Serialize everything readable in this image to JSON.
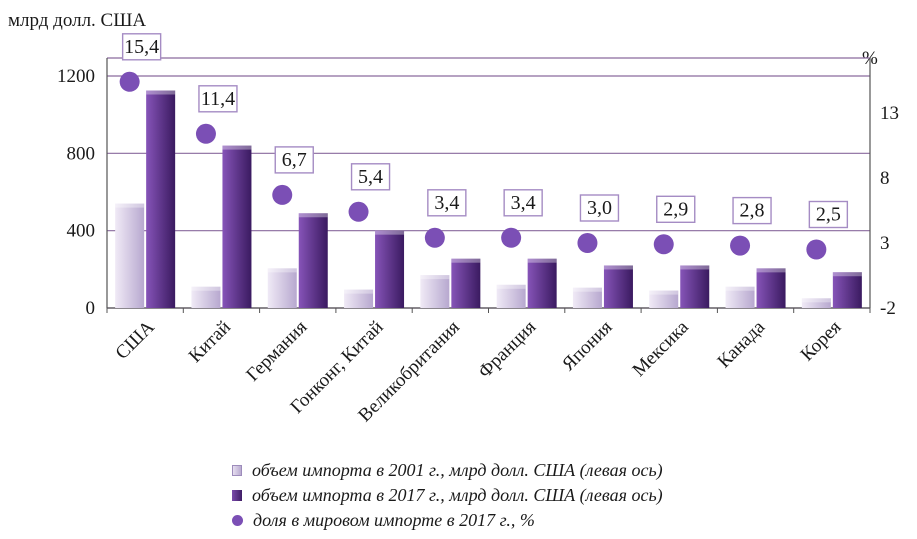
{
  "chart_data": {
    "type": "bar",
    "left_axis_unit": "млрд долл. США",
    "right_axis_unit": "%",
    "categories": [
      "США",
      "Китай",
      "Германия",
      "Гонконг, Китай",
      "Великобритания",
      "Франция",
      "Япония",
      "Мексика",
      "Канада",
      "Корея"
    ],
    "left_ylim": [
      0,
      1200
    ],
    "left_ticks": [
      "0",
      "400",
      "800",
      "1200"
    ],
    "right_ylim": [
      -2,
      16.5
    ],
    "right_ticks": [
      "-2",
      "3",
      "8",
      "13"
    ],
    "grid": true,
    "series": [
      {
        "name": "объем импорта в 2001 г., млрд долл. США (левая ось)",
        "axis": "left",
        "kind": "bar",
        "values": [
          540,
          110,
          205,
          95,
          170,
          120,
          105,
          90,
          110,
          50
        ]
      },
      {
        "name": "объем импорта в 2017 г., млрд долл. США (левая ось)",
        "axis": "left",
        "kind": "bar",
        "values": [
          1125,
          840,
          490,
          400,
          255,
          255,
          220,
          220,
          205,
          185
        ]
      },
      {
        "name": "доля в мировом импорте в 2017 г., %",
        "axis": "right",
        "kind": "point",
        "values": [
          15.4,
          11.4,
          6.7,
          5.4,
          3.4,
          3.4,
          3.0,
          2.9,
          2.8,
          2.5
        ],
        "labels": [
          "15,4",
          "11,4",
          "6,7",
          "5,4",
          "3,4",
          "3,4",
          "3,0",
          "2,9",
          "2,8",
          "2,5"
        ]
      }
    ],
    "legend_position": "bottom",
    "colors": {
      "bar2001": "#cdc2e0",
      "bar2017": "#5a2d86",
      "point": "#7b4fb5",
      "grid": "#8a6a9e"
    }
  }
}
